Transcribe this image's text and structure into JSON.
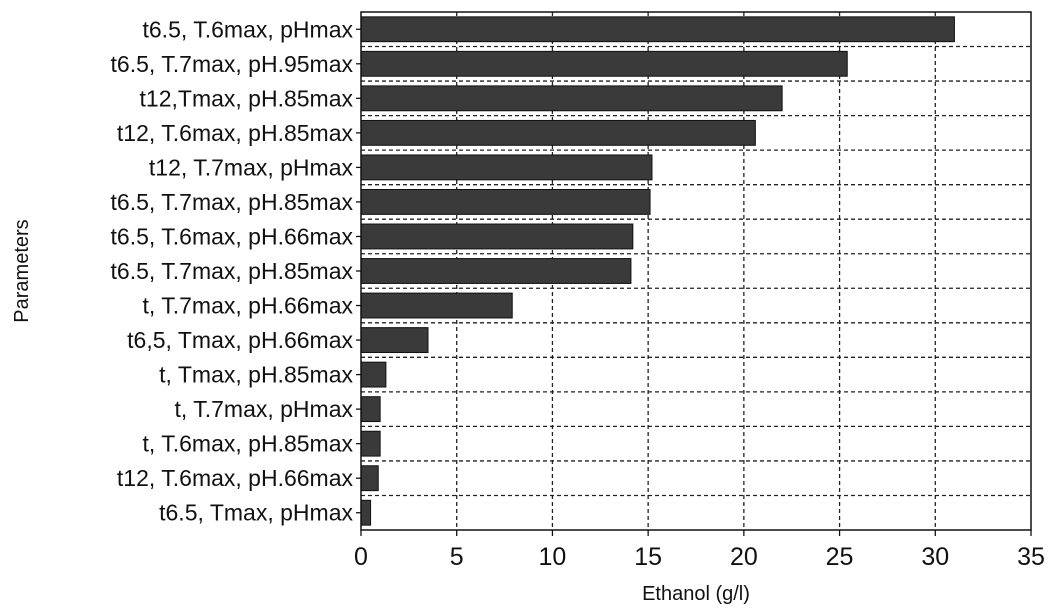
{
  "chart_data": {
    "type": "bar",
    "orientation": "horizontal",
    "title": "",
    "xlabel": "Ethanol (g/l)",
    "ylabel": "Parameters",
    "xlim": [
      0,
      35
    ],
    "xticks": [
      0,
      5,
      10,
      15,
      20,
      25,
      30,
      35
    ],
    "grid": true,
    "grid_style": "dashed",
    "bar_color": "#3a3a3a",
    "categories": [
      "t6.5, T.6max, pHmax",
      "t6.5, T.7max, pH.95max",
      "t12,Tmax, pH.85max",
      "t12, T.6max, pH.85max",
      "t12, T.7max, pHmax",
      "t6.5, T.7max, pH.85max",
      "t6.5, T.6max, pH.66max",
      "t6.5, T.7max, pH.85max",
      "t, T.7max, pH.66max",
      "t6,5, Tmax, pH.66max",
      "t, Tmax, pH.85max",
      "t, T.7max, pHmax",
      "t, T.6max, pH.85max",
      "t12, T.6max, pH.66max",
      "t6.5, Tmax, pHmax"
    ],
    "values": [
      31.0,
      25.4,
      22.0,
      20.6,
      15.2,
      15.1,
      14.2,
      14.1,
      7.9,
      3.5,
      1.3,
      1.0,
      1.0,
      0.9,
      0.5
    ]
  }
}
